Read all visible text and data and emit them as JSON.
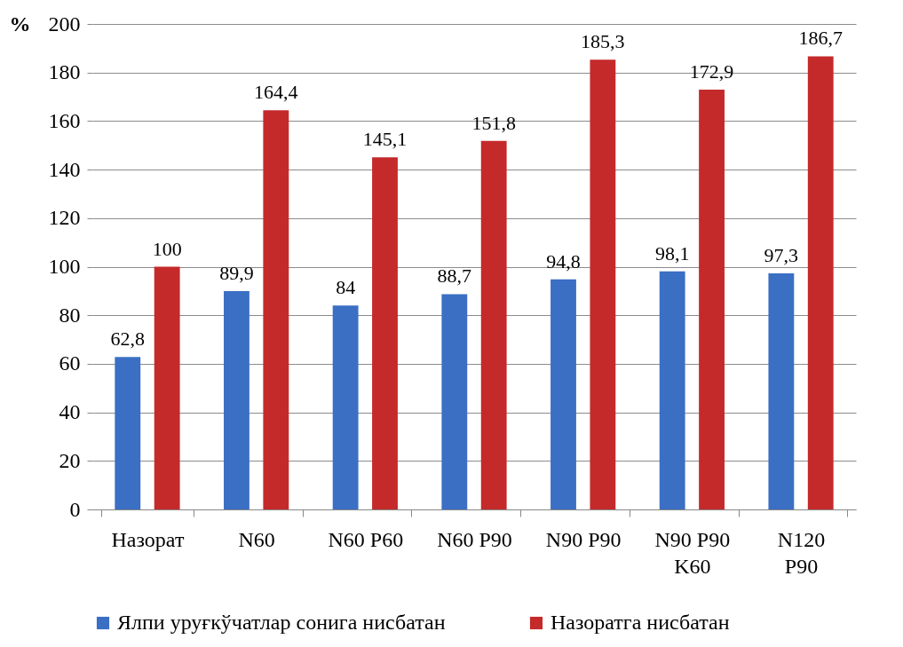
{
  "chart_data": {
    "type": "bar",
    "ylabel": "%",
    "categories": [
      "Назорат",
      "N60",
      "N60 P60",
      "N60 P90",
      "N90 P90",
      "N90 P90 K60",
      "N120 P90"
    ],
    "series": [
      {
        "name": "Ялпи уруғкўчатлар сонига нисбатан",
        "color": "#3a6fc4",
        "values": [
          62.8,
          89.9,
          84,
          88.7,
          94.8,
          98.1,
          97.3
        ],
        "value_labels": [
          "62,8",
          "89,9",
          "84",
          "88,7",
          "94,8",
          "98,1",
          "97,3"
        ]
      },
      {
        "name": "Назоратга нисбатан",
        "color": "#c42a2a",
        "values": [
          100,
          164.4,
          145.1,
          151.8,
          185.3,
          172.9,
          186.7
        ],
        "value_labels": [
          "100",
          "164,4",
          "145,1",
          "151,8",
          "185,3",
          "172,9",
          "186,7"
        ]
      }
    ],
    "ylim": [
      0,
      200
    ],
    "yticks": [
      0,
      20,
      40,
      60,
      80,
      100,
      120,
      140,
      160,
      180,
      200
    ],
    "grid": "y",
    "legend": "bottom"
  }
}
